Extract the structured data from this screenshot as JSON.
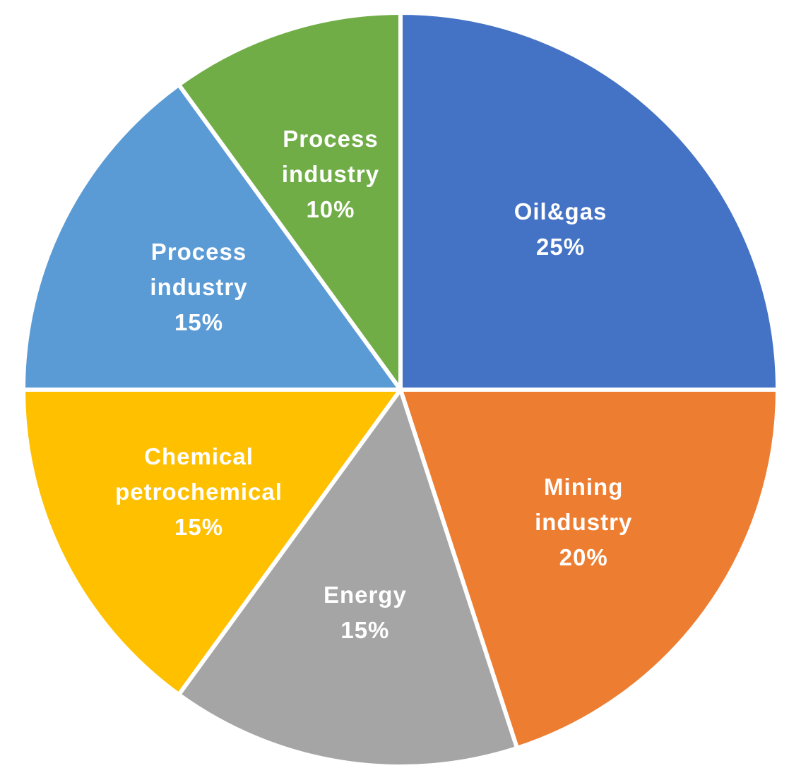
{
  "chart_data": {
    "type": "pie",
    "categories": [
      "Oil&gas",
      "Mining industry",
      "Energy",
      "Chemical petrochemical",
      "Process industry",
      "Process industry"
    ],
    "values": [
      25,
      20,
      15,
      15,
      15,
      10
    ],
    "value_labels": [
      "25%",
      "20%",
      "15%",
      "15%",
      "15%",
      "10%"
    ],
    "colors": [
      "#4472c4",
      "#ed7d31",
      "#a5a5a5",
      "#ffc000",
      "#5b9bd5",
      "#70ad47"
    ]
  }
}
